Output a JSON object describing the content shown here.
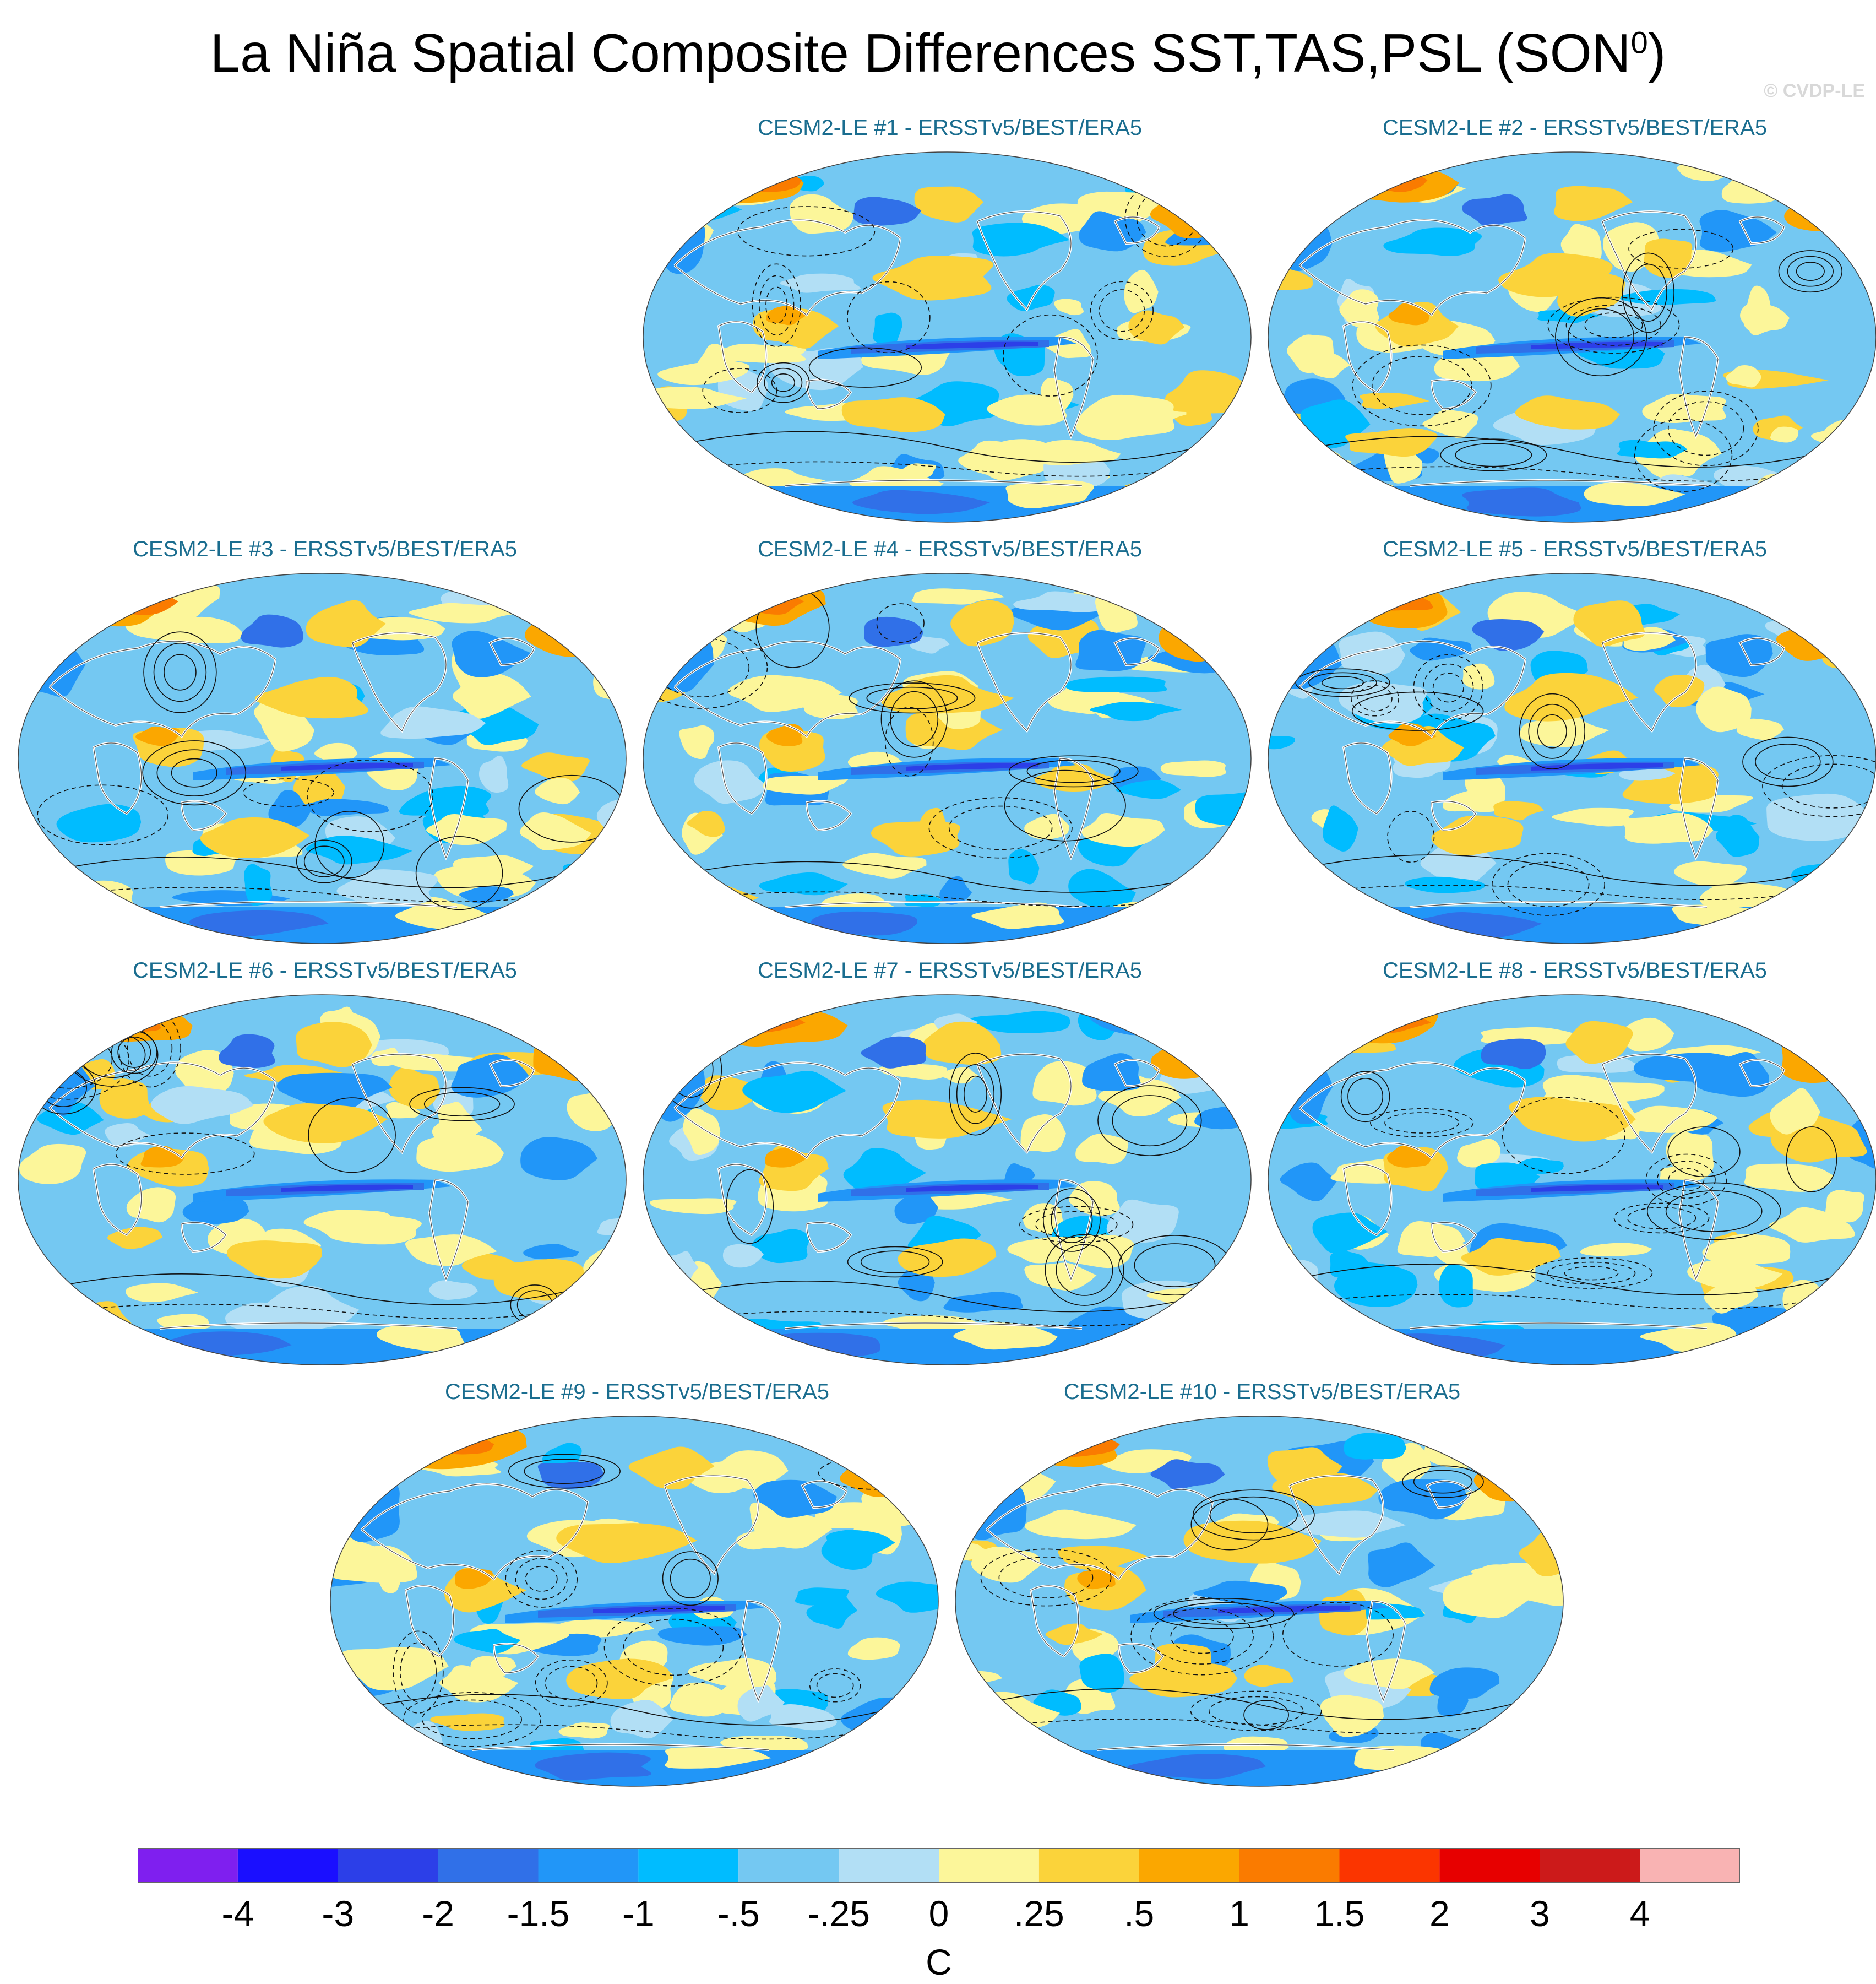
{
  "title": "La Niña Spatial Composite Differences SST,TAS,PSL (SON",
  "title_superscript": "0",
  "title_tail": ")",
  "copyright": "© CVDP-LE",
  "panels": [
    {
      "title": "CESM2-LE #1 - ERSSTv5/BEST/ERA5",
      "row": 0,
      "col": 1
    },
    {
      "title": "CESM2-LE #2 - ERSSTv5/BEST/ERA5",
      "row": 0,
      "col": 2
    },
    {
      "title": "CESM2-LE #3 - ERSSTv5/BEST/ERA5",
      "row": 1,
      "col": 0
    },
    {
      "title": "CESM2-LE #4 - ERSSTv5/BEST/ERA5",
      "row": 1,
      "col": 1
    },
    {
      "title": "CESM2-LE #5 - ERSSTv5/BEST/ERA5",
      "row": 1,
      "col": 2
    },
    {
      "title": "CESM2-LE #6 - ERSSTv5/BEST/ERA5",
      "row": 2,
      "col": 0
    },
    {
      "title": "CESM2-LE #7 - ERSSTv5/BEST/ERA5",
      "row": 2,
      "col": 1
    },
    {
      "title": "CESM2-LE #8 - ERSSTv5/BEST/ERA5",
      "row": 2,
      "col": 2
    },
    {
      "title": "CESM2-LE #9 - ERSSTv5/BEST/ERA5",
      "row": 3,
      "col": 0
    },
    {
      "title": "CESM2-LE #10 - ERSSTv5/BEST/ERA5",
      "row": 3,
      "col": 1
    }
  ],
  "colorbar": {
    "unit": "C",
    "colors": [
      "#7f1fef",
      "#1a0fff",
      "#2c3fe8",
      "#3070e8",
      "#2196f8",
      "#00bcff",
      "#74c8f2",
      "#b2dff5",
      "#fcf69a",
      "#fbd33a",
      "#fba700",
      "#fa7b00",
      "#fb3500",
      "#e70000",
      "#cc1a1a",
      "#f9b3b3"
    ],
    "labels": [
      "-4",
      "-3",
      "-2",
      "-1.5",
      "-1",
      "-.5",
      "-.25",
      "0",
      ".25",
      ".5",
      "1",
      "1.5",
      "2",
      "3",
      "4"
    ]
  }
}
